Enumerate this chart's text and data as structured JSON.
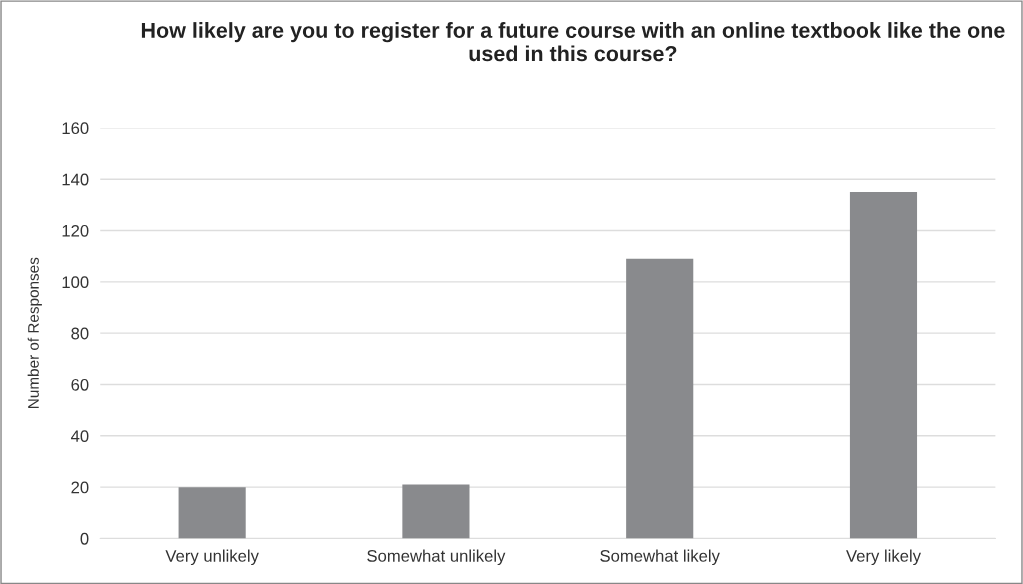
{
  "chart_data": {
    "type": "bar",
    "title": "How likely are you to register for a future course with an online textbook like the one used in this course?",
    "ylabel": "Number of Responses",
    "categories": [
      "Very unlikely",
      "Somewhat unlikely",
      "Somewhat likely",
      "Very likely"
    ],
    "values": [
      20,
      21,
      109,
      135
    ],
    "color": "#898a8d",
    "ylim": [
      0,
      160
    ],
    "yticks": [
      0,
      20,
      40,
      60,
      80,
      100,
      120,
      140,
      160
    ],
    "grid": "y"
  }
}
